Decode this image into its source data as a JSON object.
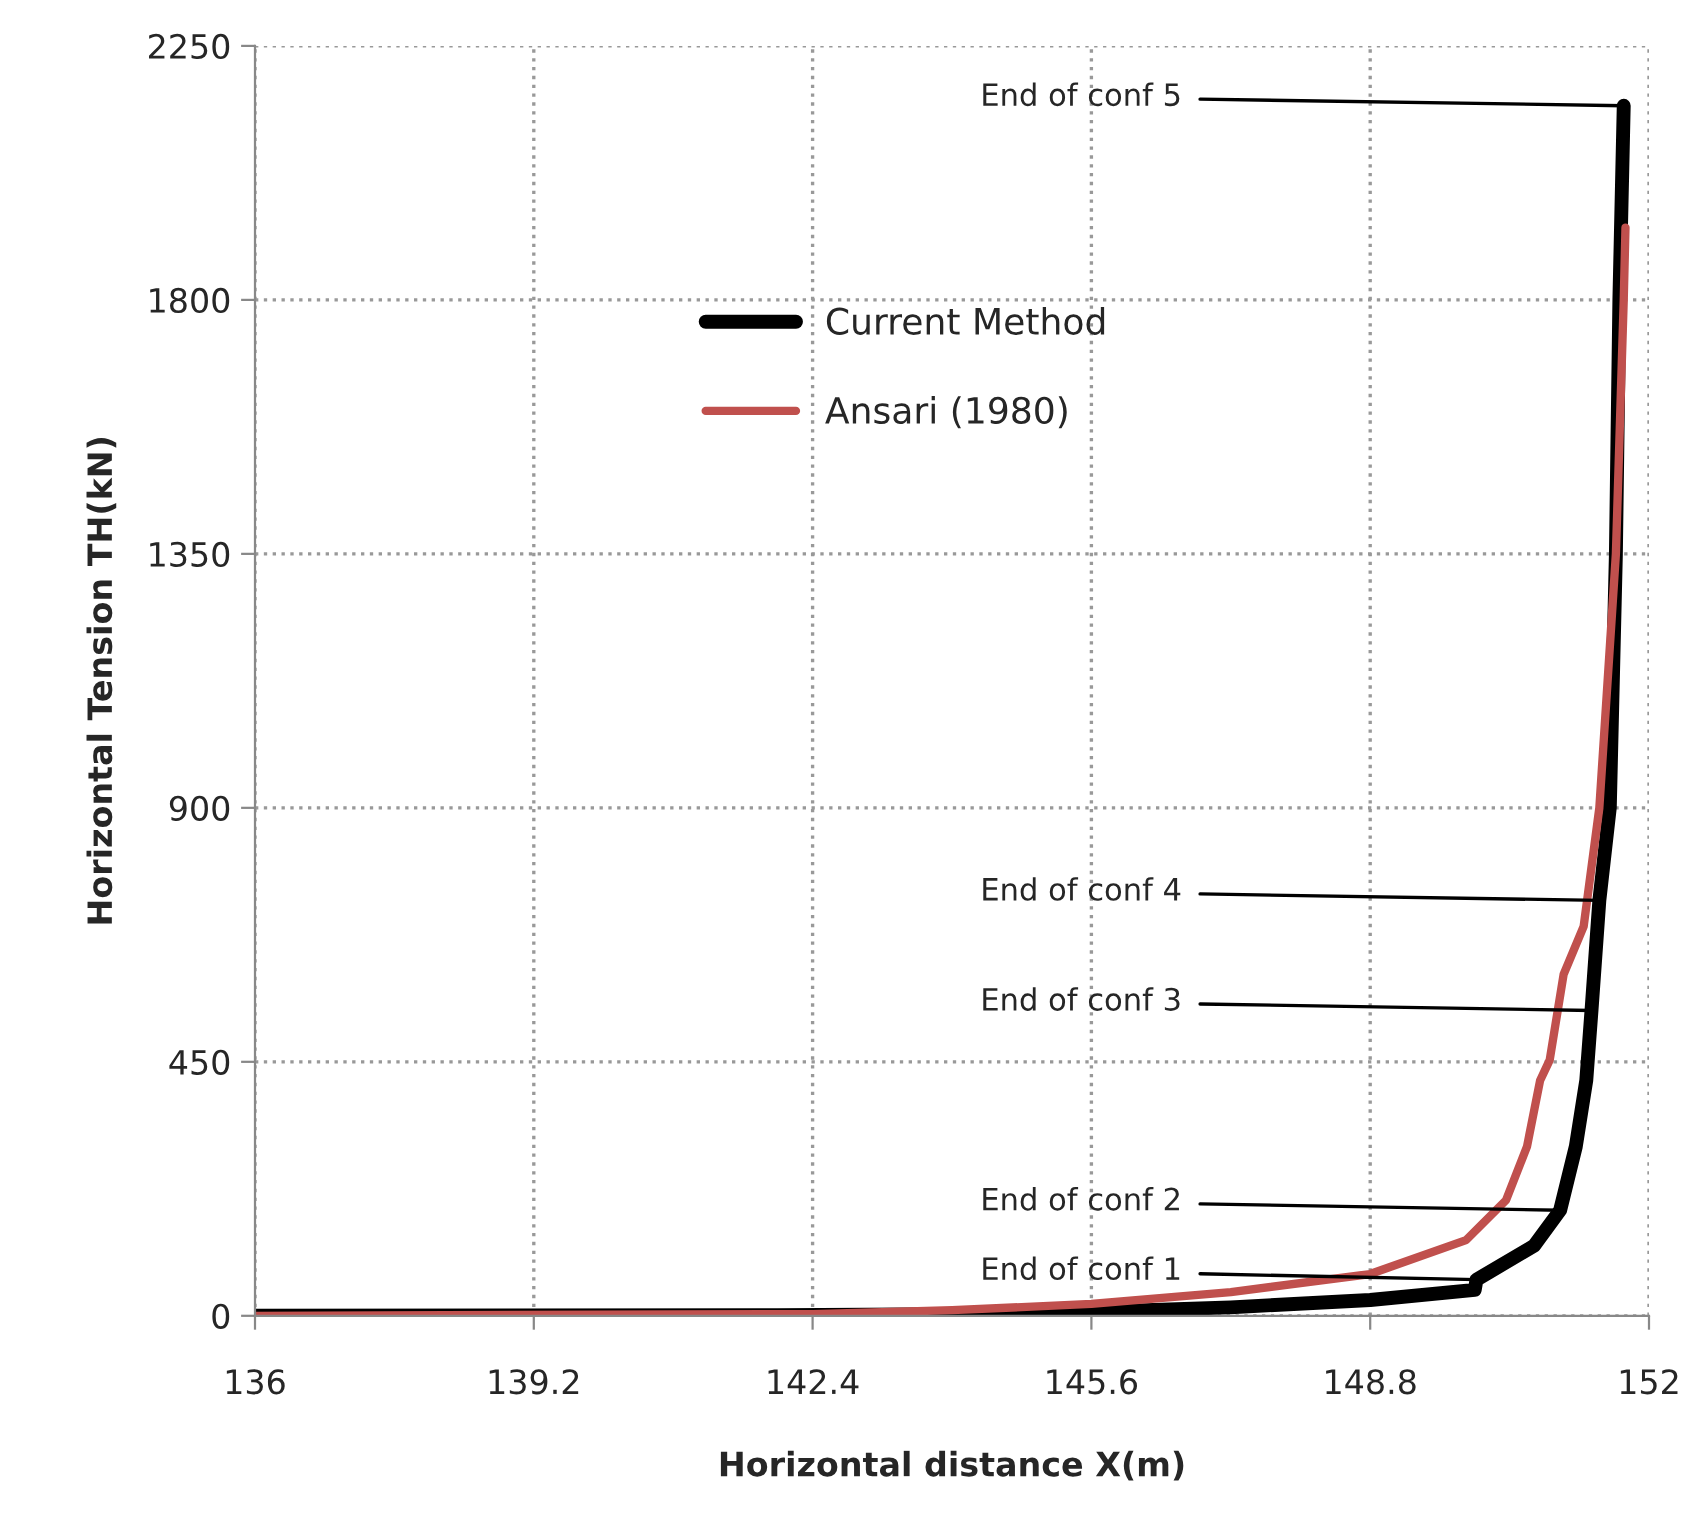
{
  "chart_data": {
    "type": "line",
    "xlabel": "Horizontal distance X(m)",
    "ylabel": "Horizontal Tension TH(kN)",
    "xlim": [
      136,
      152
    ],
    "xticks": [
      136,
      139.2,
      142.4,
      145.6,
      148.8,
      152
    ],
    "ylim": [
      0,
      2250
    ],
    "yticks": [
      0,
      450,
      900,
      1350,
      1800,
      2250
    ],
    "grid": true,
    "legend": "top left",
    "marker": "none",
    "line_style": "solid",
    "series": [
      {
        "name": "Current Method",
        "color": "#000000",
        "x": [
          136,
          142,
          144,
          145.6,
          147.2,
          148.8,
          150.0,
          150.02,
          150.68,
          150.98,
          151.16,
          151.28,
          151.34,
          151.43,
          151.55,
          151.62,
          151.66,
          151.71
        ],
        "values": [
          0,
          1,
          3,
          7,
          15,
          28,
          46,
          64,
          124,
          187,
          300,
          417,
          541,
          736,
          900,
          1350,
          1800,
          2144
        ]
      },
      {
        "name": "Ansari (1980)",
        "color": "#c0504d",
        "x": [
          136,
          142.4,
          144,
          145.6,
          147.2,
          148.8,
          149.9,
          150.36,
          150.6,
          150.75,
          150.86,
          151.02,
          151.25,
          151.43,
          151.62,
          151.71,
          151.73
        ],
        "values": [
          0,
          3,
          10,
          21,
          42,
          74,
          134,
          205,
          300,
          417,
          453,
          605,
          690,
          900,
          1350,
          1800,
          1928
        ]
      }
    ],
    "annotations": [
      {
        "text": "End of conf 1",
        "x": 150.02,
        "y": 64
      },
      {
        "text": "End of conf 2",
        "x": 150.98,
        "y": 187
      },
      {
        "text": "End of conf 3",
        "x": 151.34,
        "y": 541
      },
      {
        "text": "End of conf 4",
        "x": 151.43,
        "y": 736
      },
      {
        "text": "End of conf 5",
        "x": 151.71,
        "y": 2144
      }
    ]
  }
}
